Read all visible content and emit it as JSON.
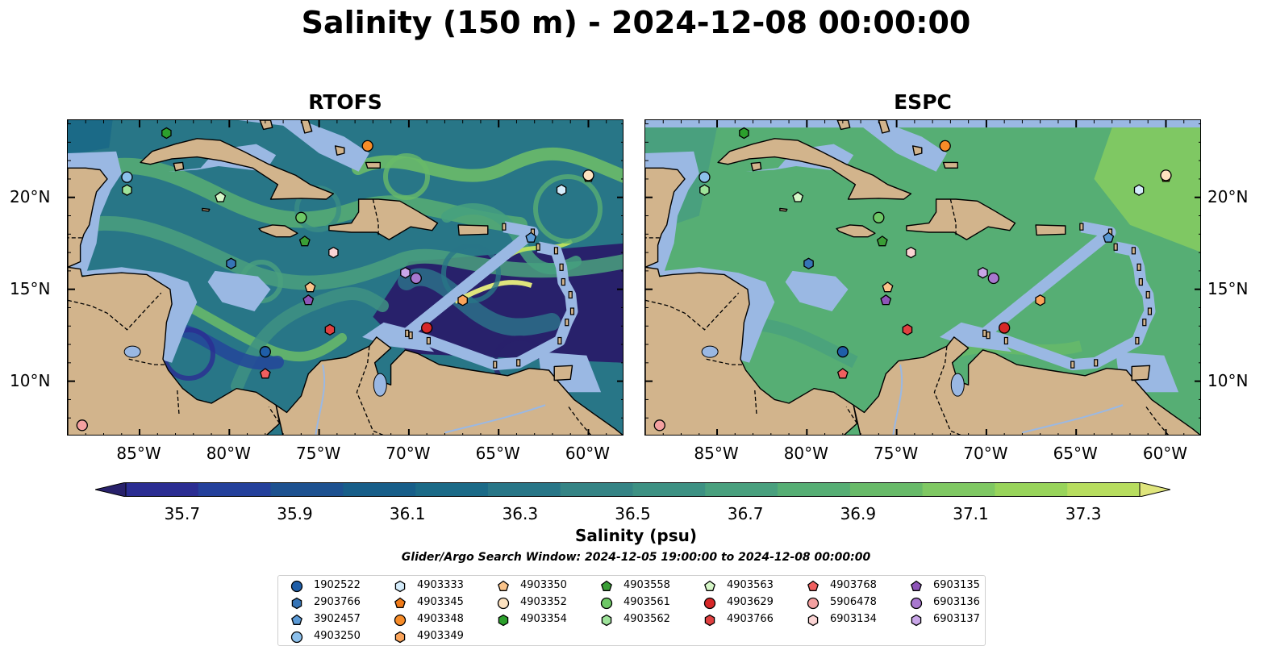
{
  "title": "Salinity (150 m) - 2024-12-08 00:00:00",
  "panels": [
    {
      "title": "RTOFS",
      "mode": "rtofs"
    },
    {
      "title": "ESPC",
      "mode": "espc"
    }
  ],
  "map_extent": {
    "lon_min": -89,
    "lon_max": -58,
    "lat_min": 7,
    "lat_max": 24.2
  },
  "x_ticks": [
    {
      "lon": -85,
      "label": "85°W"
    },
    {
      "lon": -80,
      "label": "80°W"
    },
    {
      "lon": -75,
      "label": "75°W"
    },
    {
      "lon": -70,
      "label": "70°W"
    },
    {
      "lon": -65,
      "label": "65°W"
    },
    {
      "lon": -60,
      "label": "60°W"
    }
  ],
  "y_ticks": [
    {
      "lat": 20,
      "label": "20°N"
    },
    {
      "lat": 15,
      "label": "15°N"
    },
    {
      "lat": 10,
      "label": "10°N"
    }
  ],
  "colorbar": {
    "min": 35.6,
    "max": 37.4,
    "colors": [
      "#28216b",
      "#2b2d92",
      "#24409b",
      "#1d5190",
      "#175e89",
      "#1b6a87",
      "#287687",
      "#358485",
      "#3d9183",
      "#49a07e",
      "#56ae74",
      "#68ba69",
      "#7fc863",
      "#98d45b",
      "#b7dd5f",
      "#dfe57c"
    ],
    "ticks": [
      35.7,
      35.9,
      36.1,
      36.3,
      36.5,
      36.7,
      36.9,
      37.1,
      37.3
    ],
    "tick_labels": [
      "35.7",
      "35.9",
      "36.1",
      "36.3",
      "36.5",
      "36.7",
      "36.9",
      "37.1",
      "37.3"
    ],
    "label": "Salinity (psu)"
  },
  "colors": {
    "land": "#d2b48c",
    "shallow": "#9ab8e3",
    "deep_low": "#2b1f6a"
  },
  "search_window": "Glider/Argo Search Window: 2024-12-05 19:00:00 to 2024-12-08 00:00:00",
  "floats": [
    {
      "id": "1902522",
      "color": "#1f5ea8",
      "marker": "circle",
      "lon": -78.0,
      "lat": 11.6
    },
    {
      "id": "2903766",
      "color": "#3674b6",
      "marker": "hexagon",
      "lon": -79.9,
      "lat": 16.4
    },
    {
      "id": "3902457",
      "color": "#5b9ad6",
      "marker": "pentagon",
      "lon": -63.2,
      "lat": 17.8
    },
    {
      "id": "4903250",
      "color": "#8cc0ec",
      "marker": "circle",
      "lon": -85.7,
      "lat": 21.1
    },
    {
      "id": "4903333",
      "color": "#d4ecfb",
      "marker": "hexagon",
      "lon": -61.5,
      "lat": 20.4
    },
    {
      "id": "4903345",
      "color": "#f07a18",
      "marker": "pentagon",
      "lon": -60.0,
      "lat": 21.1
    },
    {
      "id": "4903348",
      "color": "#f78c28",
      "marker": "circle",
      "lon": -72.3,
      "lat": 22.8
    },
    {
      "id": "4903349",
      "color": "#fba45a",
      "marker": "hexagon",
      "lon": -67.0,
      "lat": 14.4
    },
    {
      "id": "4903350",
      "color": "#fbc48a",
      "marker": "pentagon",
      "lon": -75.5,
      "lat": 15.1
    },
    {
      "id": "4903352",
      "color": "#fde2c0",
      "marker": "circle",
      "lon": -60.0,
      "lat": 21.2
    },
    {
      "id": "4903354",
      "color": "#2ca02c",
      "marker": "hexagon",
      "lon": -83.5,
      "lat": 23.5
    },
    {
      "id": "4903558",
      "color": "#3a9e36",
      "marker": "pentagon",
      "lon": -75.8,
      "lat": 17.6
    },
    {
      "id": "4903561",
      "color": "#6ec866",
      "marker": "circle",
      "lon": -76.0,
      "lat": 18.9
    },
    {
      "id": "4903562",
      "color": "#9ee39a",
      "marker": "hexagon",
      "lon": -85.7,
      "lat": 20.4
    },
    {
      "id": "4903563",
      "color": "#d6f7c8",
      "marker": "pentagon",
      "lon": -80.5,
      "lat": 20.0
    },
    {
      "id": "4903629",
      "color": "#d62728",
      "marker": "circle",
      "lon": -69.0,
      "lat": 12.9
    },
    {
      "id": "4903766",
      "color": "#e04040",
      "marker": "hexagon",
      "lon": -74.4,
      "lat": 12.8
    },
    {
      "id": "4903768",
      "color": "#ef5f5f",
      "marker": "pentagon",
      "lon": -78.0,
      "lat": 10.4
    },
    {
      "id": "5906478",
      "color": "#f4a0a0",
      "marker": "circle",
      "lon": -88.2,
      "lat": 7.6
    },
    {
      "id": "6903134",
      "color": "#fbd4d4",
      "marker": "hexagon",
      "lon": -74.2,
      "lat": 17.0
    },
    {
      "id": "6903135",
      "color": "#8e55b8",
      "marker": "pentagon",
      "lon": -75.6,
      "lat": 14.4
    },
    {
      "id": "6903136",
      "color": "#a878cf",
      "marker": "circle",
      "lon": -69.6,
      "lat": 15.6
    },
    {
      "id": "6903137",
      "color": "#c9a6e8",
      "marker": "hexagon",
      "lon": -70.2,
      "lat": 15.9
    }
  ]
}
